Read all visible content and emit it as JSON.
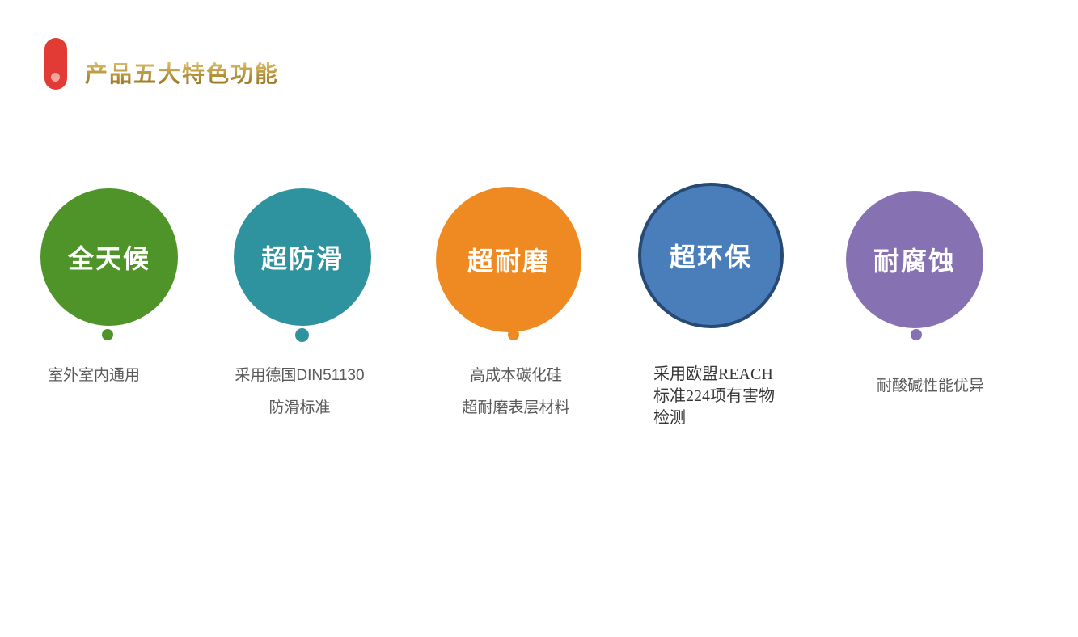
{
  "page": {
    "background": "#ffffff"
  },
  "styles": {
    "circle_label_color": "#ffffff",
    "desc_text_color": "#595959",
    "desc4_serif_text_color": "#363636"
  },
  "header": {
    "title": "产品五大特色功能",
    "title_color": "#bd9023",
    "title_gradient_top": "#ddbe68",
    "title_gradient_bottom": "#96711b",
    "marker_color": "#e23b35",
    "marker_dot_color": "#efa79d"
  },
  "timeline": {
    "line_color": "#b3b3b3"
  },
  "features": [
    {
      "id": "all-weather",
      "label": "全天候",
      "color": "#4e9428",
      "desc_lines": [
        "室外室内通用"
      ]
    },
    {
      "id": "anti-slip",
      "label": "超防滑",
      "color": "#2f939f",
      "desc_lines": [
        "采用德国DIN51130",
        "防滑标准"
      ]
    },
    {
      "id": "wear-resistant",
      "label": "超耐磨",
      "color": "#ef8a22",
      "desc_lines": [
        "高成本碳化硅",
        "超耐磨表层材料"
      ]
    },
    {
      "id": "eco-friendly",
      "label": "超环保",
      "color": "#4a7ebb",
      "border_color": "#264a73",
      "desc_lines": [
        "采用欧盟REACH",
        "标准224项有害物",
        "检测"
      ]
    },
    {
      "id": "corrosion-resistant",
      "label": "耐腐蚀",
      "color": "#8671b3",
      "desc_lines": [
        "耐酸碱性能优异"
      ]
    }
  ]
}
